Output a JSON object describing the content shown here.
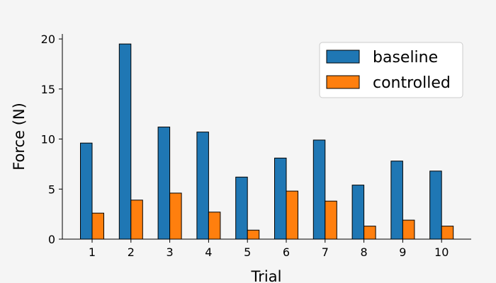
{
  "chart_data": {
    "type": "bar",
    "xlabel": "Trial",
    "ylabel": "Force (N)",
    "categories": [
      "1",
      "2",
      "3",
      "4",
      "5",
      "6",
      "7",
      "8",
      "9",
      "10"
    ],
    "series": [
      {
        "name": "baseline",
        "color": "#1f77b4",
        "values": [
          9.6,
          19.5,
          11.2,
          10.7,
          6.2,
          8.1,
          9.9,
          5.4,
          7.8,
          6.8
        ]
      },
      {
        "name": "controlled",
        "color": "#ff7f0e",
        "values": [
          2.6,
          3.9,
          4.6,
          2.7,
          0.9,
          4.8,
          3.8,
          1.3,
          1.9,
          1.3
        ]
      }
    ],
    "ylim": [
      0,
      20.5
    ],
    "yticks": [
      0,
      5,
      10,
      15,
      20
    ],
    "grid": false,
    "legend_position": "top-right"
  }
}
